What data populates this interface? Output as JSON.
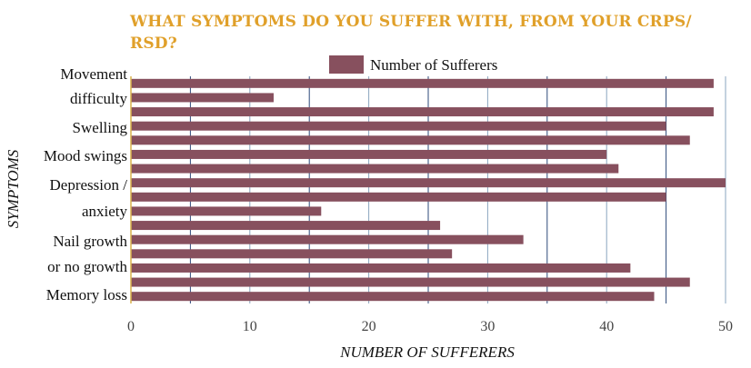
{
  "chart_data": {
    "type": "bar",
    "orientation": "horizontal",
    "title": "WHAT SYMPTOMS DO YOU SUFFER WITH, FROM YOUR CRPS/ RSD?",
    "xlabel": "NUMBER OF SUFFERERS",
    "ylabel": "SYMPTOMS",
    "xlim": [
      0,
      50
    ],
    "xticks": [
      0,
      10,
      20,
      30,
      40,
      50
    ],
    "grid": "vertical",
    "legend_position": "top",
    "category_labels_shown": [
      "Movement difficulty",
      "Swelling",
      "Mood swings",
      "Depression / anxiety",
      "Nail growth or no growth",
      "Memory loss"
    ],
    "series": [
      {
        "name": "Number of Sufferers",
        "color": "#87505E",
        "values": [
          49,
          12,
          49,
          45,
          47,
          40,
          41,
          50,
          45,
          16,
          26,
          33,
          27,
          42,
          47,
          44
        ]
      }
    ]
  }
}
